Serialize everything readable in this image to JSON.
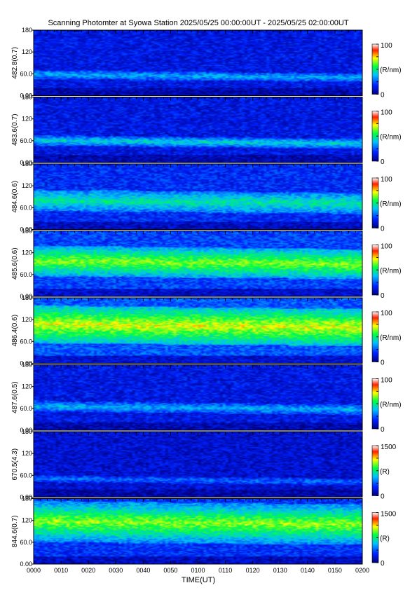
{
  "title": "Scanning Photomter at Syowa Station  2025/05/25 00:00:00UT - 2025/05/25 02:00:00UT",
  "colors": {
    "low": "#000080",
    "mid_low": "#0040ff",
    "mid": "#00ff40",
    "mid_high": "#ffff00",
    "high": "#ff0000",
    "top": "#ffffff"
  },
  "chart_data": {
    "type": "heatmap",
    "xlabel": "TIME(UT)",
    "x_ticks": [
      "0000",
      "0010",
      "0020",
      "0030",
      "0040",
      "0050",
      "0100",
      "0110",
      "0120",
      "0130",
      "0140",
      "0150",
      "0200"
    ],
    "y_ticks": [
      "0.00",
      "60.0",
      "120",
      "180"
    ],
    "ylim": [
      0,
      180
    ],
    "panels": [
      {
        "ylabel": "482.8(0.7)",
        "cbar_label": "(R/nm)",
        "cbar_max": "100",
        "cbar_min": "0",
        "intensity": 0.25,
        "band": [
          45,
          70
        ],
        "band_boost": 0.15
      },
      {
        "ylabel": "483.6(0.7)",
        "cbar_label": "(R/nm)",
        "cbar_max": "100",
        "cbar_min": "0",
        "intensity": 0.25,
        "band": [
          45,
          75
        ],
        "band_boost": 0.22
      },
      {
        "ylabel": "484.6(0.6)",
        "cbar_label": "(R/nm)",
        "cbar_max": "100",
        "cbar_min": "0",
        "intensity": 0.33,
        "band": [
          50,
          110
        ],
        "band_boost": 0.2
      },
      {
        "ylabel": "485.6(0.6)",
        "cbar_label": "(R/nm)",
        "cbar_max": "100",
        "cbar_min": "0",
        "intensity": 0.4,
        "band": [
          55,
          140
        ],
        "band_boost": 0.3
      },
      {
        "ylabel": "486.4(0.6)",
        "cbar_label": "(R/nm)",
        "cbar_max": "100",
        "cbar_min": "0",
        "intensity": 0.45,
        "band": [
          55,
          160
        ],
        "band_boost": 0.32
      },
      {
        "ylabel": "487.6(0.5)",
        "cbar_label": "(R/nm)",
        "cbar_max": "100",
        "cbar_min": "0",
        "intensity": 0.25,
        "band": [
          50,
          80
        ],
        "band_boost": 0.15
      },
      {
        "ylabel": "670.5(4.3)",
        "cbar_label": "(R)",
        "cbar_max": "1500",
        "cbar_min": "0",
        "intensity": 0.2,
        "band": [
          40,
          60
        ],
        "band_boost": 0.1
      },
      {
        "ylabel": "844.6(0.7)",
        "cbar_label": "(R)",
        "cbar_max": "1500",
        "cbar_min": "0",
        "intensity": 0.35,
        "band": [
          60,
          175
        ],
        "band_boost": 0.35
      }
    ]
  }
}
